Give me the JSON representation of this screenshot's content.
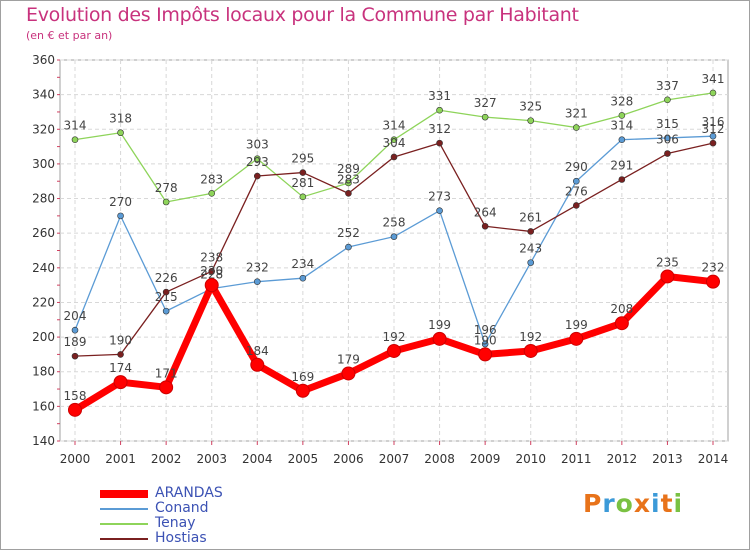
{
  "title": "Evolution des Impôts locaux pour la Commune par Habitant",
  "subtitle": "(en € et par an)",
  "logo_text": "Proxiti",
  "chart_data": {
    "type": "line",
    "x": [
      "2000",
      "2001",
      "2002",
      "2003",
      "2004",
      "2005",
      "2006",
      "2007",
      "2008",
      "2009",
      "2010",
      "2011",
      "2012",
      "2013",
      "2014"
    ],
    "ylim": [
      140,
      360
    ],
    "yticks": [
      140,
      160,
      180,
      200,
      220,
      240,
      260,
      280,
      300,
      320,
      340,
      360
    ],
    "grid": true,
    "legend_position": "bottom-left",
    "series": [
      {
        "name": "ARANDAS",
        "color": "#ff0000",
        "values": [
          158,
          174,
          171,
          230,
          184,
          169,
          179,
          192,
          199,
          190,
          192,
          199,
          208,
          235,
          232
        ]
      },
      {
        "name": "Conand",
        "color": "#5b9bd5",
        "values": [
          204,
          270,
          215,
          228,
          232,
          234,
          252,
          258,
          273,
          196,
          243,
          290,
          314,
          315,
          316
        ]
      },
      {
        "name": "Tenay",
        "color": "#8ed45a",
        "values": [
          314,
          318,
          278,
          283,
          303,
          281,
          289,
          314,
          331,
          327,
          325,
          321,
          328,
          337,
          341
        ]
      },
      {
        "name": "Hostias",
        "color": "#7a2020",
        "values": [
          189,
          190,
          226,
          238,
          293,
          295,
          283,
          304,
          312,
          264,
          261,
          276,
          291,
          306,
          312
        ]
      }
    ]
  }
}
